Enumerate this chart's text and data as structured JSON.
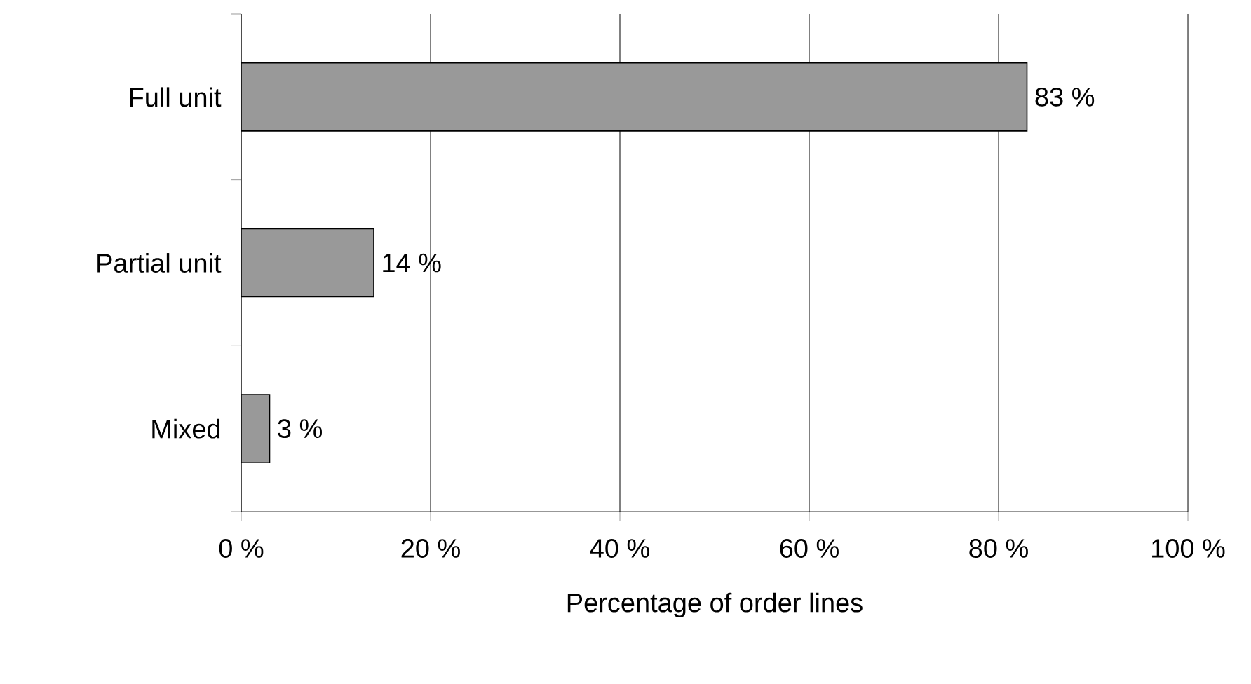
{
  "chart_data": {
    "type": "bar",
    "orientation": "horizontal",
    "categories": [
      "Full unit",
      "Partial unit",
      "Mixed"
    ],
    "values": [
      83,
      14,
      3
    ],
    "value_labels": [
      "83 %",
      "14 %",
      "3 %"
    ],
    "color": "#999999",
    "xlabel": "Percentage of order lines",
    "xlim": [
      0,
      100
    ],
    "xticks": [
      {
        "value": 0,
        "label": "0 %"
      },
      {
        "value": 20,
        "label": "20 %"
      },
      {
        "value": 40,
        "label": "40 %"
      },
      {
        "value": 60,
        "label": "60 %"
      },
      {
        "value": 80,
        "label": "80 %"
      },
      {
        "value": 100,
        "label": "100 %"
      }
    ],
    "grid": "x"
  }
}
